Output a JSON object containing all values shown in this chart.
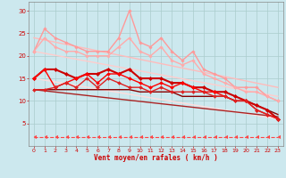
{
  "xlabel": "Vent moyen/en rafales ( km/h )",
  "xlim": [
    -0.5,
    23.5
  ],
  "ylim": [
    0,
    32
  ],
  "yticks": [
    5,
    10,
    15,
    20,
    25,
    30
  ],
  "xticks": [
    0,
    1,
    2,
    3,
    4,
    5,
    6,
    7,
    8,
    9,
    10,
    11,
    12,
    13,
    14,
    15,
    16,
    17,
    18,
    19,
    20,
    21,
    22,
    23
  ],
  "bg_color": "#cce8ee",
  "grid_color": "#aacccc",
  "lines": [
    {
      "x": [
        0,
        1,
        2,
        3,
        4,
        5,
        6,
        7,
        8,
        9,
        10,
        11,
        12,
        13,
        14,
        15,
        16,
        17,
        18,
        19,
        20,
        21,
        22,
        23
      ],
      "y": [
        21,
        26,
        24,
        23,
        22,
        21,
        21,
        21,
        24,
        30,
        23,
        22,
        24,
        21,
        19,
        21,
        17,
        16,
        15,
        13,
        13,
        13,
        11,
        10
      ],
      "color": "#ff9999",
      "lw": 1.0,
      "marker": "D",
      "ms": 1.8,
      "linestyle": "-",
      "zorder": 4
    },
    {
      "x": [
        0,
        1,
        2,
        3,
        4,
        5,
        6,
        7,
        8,
        9,
        10,
        11,
        12,
        13,
        14,
        15,
        16,
        17,
        18,
        19,
        20,
        21,
        22,
        23
      ],
      "y": [
        21,
        24,
        22,
        21,
        21,
        20,
        20,
        20,
        22,
        24,
        21,
        20,
        22,
        19,
        18,
        19,
        16,
        15,
        14,
        13,
        12,
        12,
        11,
        10
      ],
      "color": "#ffaaaa",
      "lw": 1.0,
      "marker": "D",
      "ms": 1.8,
      "linestyle": "-",
      "zorder": 4
    },
    {
      "x": [
        0,
        23
      ],
      "y": [
        24,
        13
      ],
      "color": "#ffbbbb",
      "lw": 1.0,
      "marker": null,
      "ms": 0,
      "linestyle": "-",
      "zorder": 2
    },
    {
      "x": [
        0,
        23
      ],
      "y": [
        21,
        11
      ],
      "color": "#ffcccc",
      "lw": 1.0,
      "marker": null,
      "ms": 0,
      "linestyle": "-",
      "zorder": 2
    },
    {
      "x": [
        0,
        23
      ],
      "y": [
        15,
        6
      ],
      "color": "#ffdddd",
      "lw": 1.0,
      "marker": null,
      "ms": 0,
      "linestyle": "-",
      "zorder": 2
    },
    {
      "x": [
        0,
        1,
        2,
        3,
        4,
        5,
        6,
        7,
        8,
        9,
        10,
        11,
        12,
        13,
        14,
        15,
        16,
        17,
        18,
        19,
        20,
        21,
        22,
        23
      ],
      "y": [
        15,
        17,
        17,
        16,
        15,
        16,
        16,
        17,
        16,
        17,
        15,
        15,
        15,
        14,
        14,
        13,
        13,
        12,
        12,
        11,
        10,
        9,
        8,
        6
      ],
      "color": "#cc0000",
      "lw": 1.5,
      "marker": "D",
      "ms": 2.2,
      "linestyle": "-",
      "zorder": 5
    },
    {
      "x": [
        0,
        1,
        2,
        3,
        4,
        5,
        6,
        7,
        8,
        9,
        10,
        11,
        12,
        13,
        14,
        15,
        16,
        17,
        18,
        19,
        20,
        21,
        22,
        23
      ],
      "y": [
        15,
        17,
        13,
        14,
        15,
        16,
        14,
        16,
        16,
        15,
        14,
        13,
        14,
        13,
        14,
        13,
        12,
        12,
        11,
        10,
        10,
        8,
        7,
        6
      ],
      "color": "#ff0000",
      "lw": 1.0,
      "marker": "D",
      "ms": 2.0,
      "linestyle": "-",
      "zorder": 5
    },
    {
      "x": [
        0,
        1,
        2,
        3,
        4,
        5,
        6,
        7,
        8,
        9,
        10,
        11,
        12,
        13,
        14,
        15,
        16,
        17,
        18,
        19,
        20,
        21,
        22,
        23
      ],
      "y": [
        12.5,
        12.5,
        13,
        14,
        13,
        15,
        13,
        15,
        14,
        13,
        13,
        12,
        13,
        12,
        12,
        12,
        12,
        11,
        11,
        10,
        10,
        8,
        7,
        6
      ],
      "color": "#dd2222",
      "lw": 1.0,
      "marker": "D",
      "ms": 2.0,
      "linestyle": "-",
      "zorder": 5
    },
    {
      "x": [
        0,
        1,
        2,
        3,
        4,
        5,
        6,
        7,
        8,
        9,
        10,
        11,
        12,
        13,
        14,
        15,
        16,
        17,
        18,
        19,
        20,
        21,
        22,
        23
      ],
      "y": [
        12.5,
        12.5,
        12.5,
        12.5,
        12.5,
        12.5,
        12.5,
        12.5,
        12.5,
        12.5,
        12,
        12,
        12,
        12,
        11,
        11,
        11,
        11,
        11,
        10,
        10,
        9,
        8,
        7
      ],
      "color": "#880000",
      "lw": 1.0,
      "marker": null,
      "ms": 0,
      "linestyle": "-",
      "zorder": 3
    },
    {
      "x": [
        0,
        23
      ],
      "y": [
        12.5,
        6.5
      ],
      "color": "#aa2222",
      "lw": 1.0,
      "marker": null,
      "ms": 0,
      "linestyle": "-",
      "zorder": 3
    },
    {
      "x": [
        0,
        1,
        2,
        3,
        4,
        5,
        6,
        7,
        8,
        9,
        10,
        11,
        12,
        13,
        14,
        15,
        16,
        17,
        18,
        19,
        20,
        21,
        22,
        23
      ],
      "y": [
        2,
        2,
        2,
        2,
        2,
        2,
        2,
        2,
        2,
        2,
        2,
        2,
        2,
        2,
        2,
        2,
        2,
        2,
        2,
        2,
        2,
        2,
        2,
        2
      ],
      "color": "#ff4444",
      "lw": 0.8,
      "marker": 4,
      "ms": 3,
      "linestyle": "--",
      "zorder": 6
    }
  ]
}
